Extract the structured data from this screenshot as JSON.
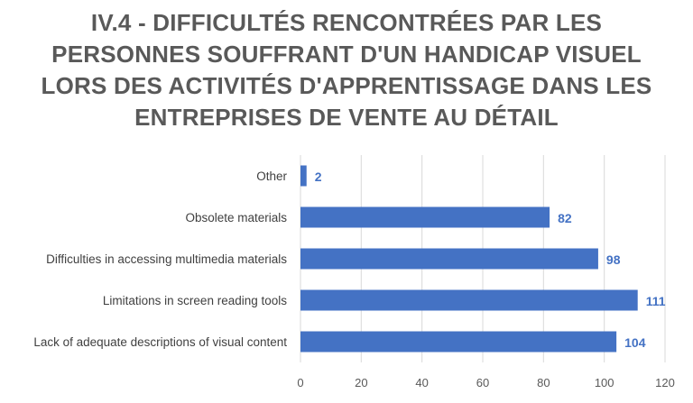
{
  "chart_data": {
    "type": "bar",
    "orientation": "horizontal",
    "title": "IV.4 - DIFFICULTÉS RENCONTRÉES PAR LES PERSONNES SOUFFRANT D'UN HANDICAP VISUEL LORS DES ACTIVITÉS D'APPRENTISSAGE DANS LES ENTREPRISES DE VENTE AU DÉTAIL",
    "xlabel": "",
    "ylabel": "",
    "categories": [
      "Other",
      "Obsolete materials",
      "Difficulties in accessing multimedia materials",
      "Limitations in screen reading tools",
      "Lack of adequate descriptions of visual content"
    ],
    "values": [
      2,
      82,
      98,
      111,
      104
    ],
    "xlim": [
      0,
      120
    ],
    "xticks": [
      0,
      20,
      40,
      60,
      80,
      100,
      120
    ],
    "grid": "vertical",
    "legend": "none",
    "colors": {
      "bar": "#4472C4",
      "data_label": "#4472C4",
      "grid": "#D9D9D9",
      "title": "#595959"
    }
  }
}
